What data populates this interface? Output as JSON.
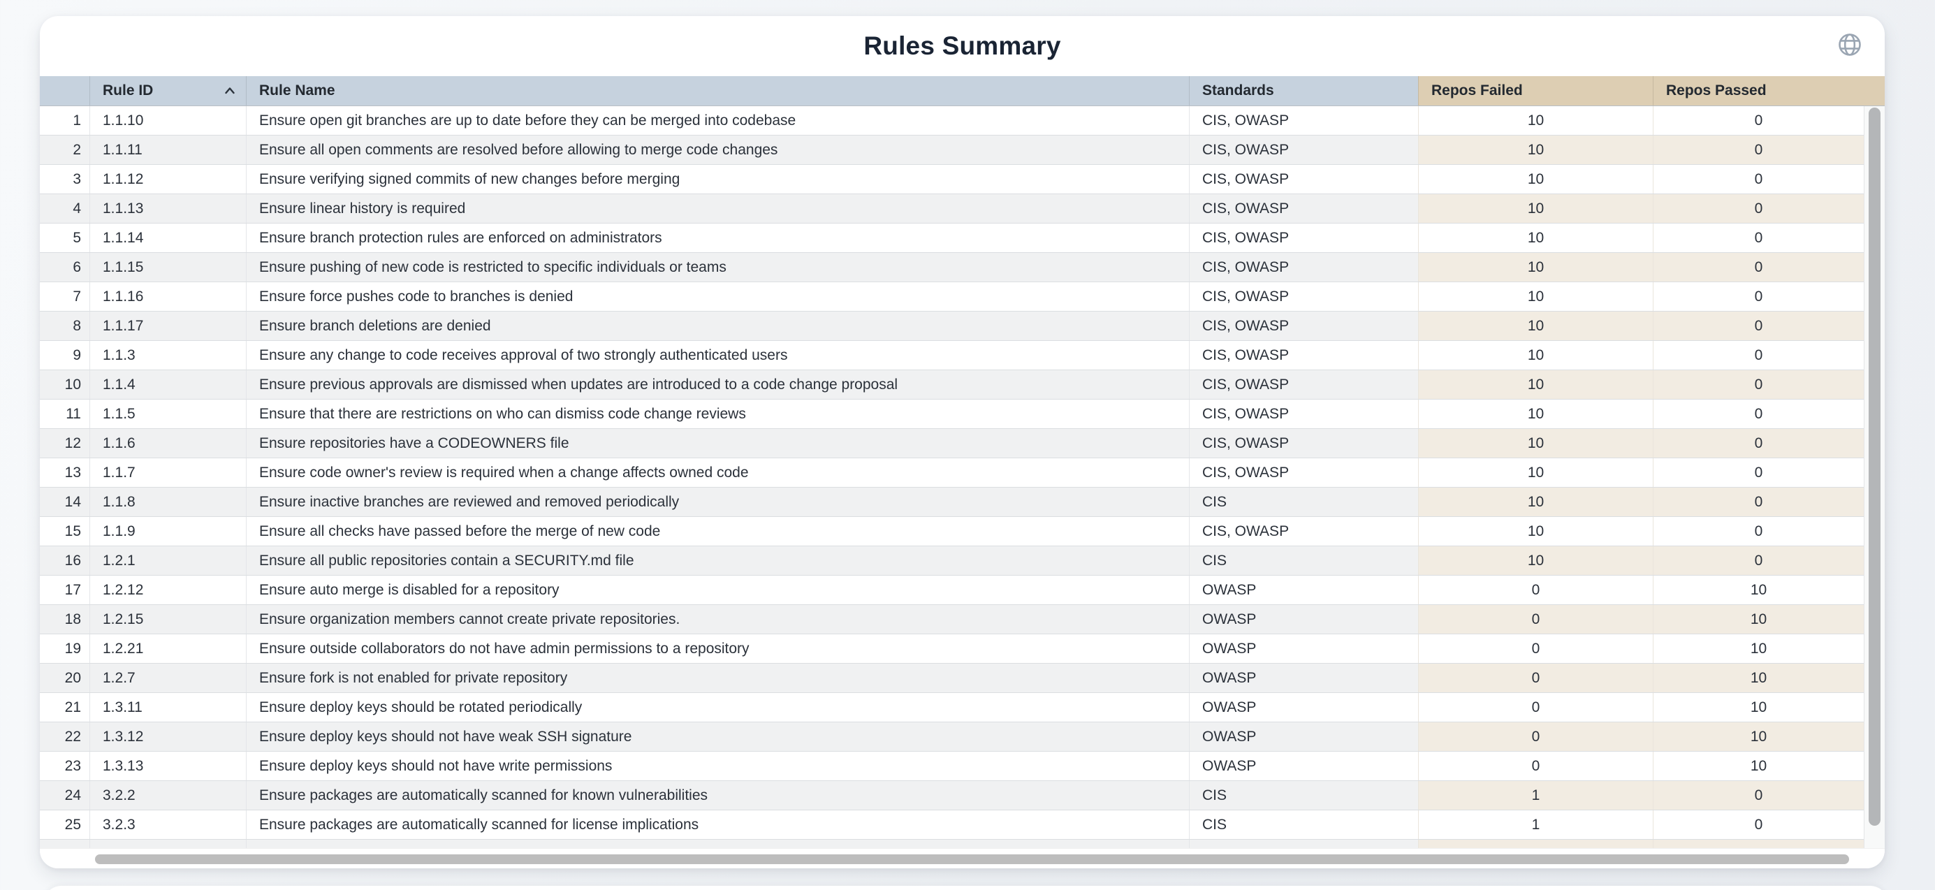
{
  "page": {
    "title": "Rules Summary"
  },
  "icons": {
    "globe": "globe-icon",
    "sort_ascending": "chevron-up-icon"
  },
  "colors": {
    "header_blue": "#c6d2de",
    "header_tan": "#ddceb3",
    "row_shaded": "#f0f1f2",
    "row_shaded_tan": "#f2ece2",
    "title_text": "#1a2434",
    "scrollbar_thumb": "#bdbdbd"
  },
  "table": {
    "columns": [
      {
        "key": "index",
        "label": ""
      },
      {
        "key": "rule_id",
        "label": "Rule ID",
        "sort": "asc"
      },
      {
        "key": "rule_name",
        "label": "Rule Name"
      },
      {
        "key": "standards",
        "label": "Standards"
      },
      {
        "key": "repos_failed",
        "label": "Repos Failed"
      },
      {
        "key": "repos_passed",
        "label": "Repos Passed"
      }
    ],
    "rows": [
      {
        "index": 1,
        "rule_id": "1.1.10",
        "rule_name": "Ensure open git branches are up to date before they can be merged into codebase",
        "standards": "CIS, OWASP",
        "repos_failed": 10,
        "repos_passed": 0
      },
      {
        "index": 2,
        "rule_id": "1.1.11",
        "rule_name": "Ensure all open comments are resolved before allowing to merge code changes",
        "standards": "CIS, OWASP",
        "repos_failed": 10,
        "repos_passed": 0
      },
      {
        "index": 3,
        "rule_id": "1.1.12",
        "rule_name": "Ensure verifying signed commits of new changes before merging",
        "standards": "CIS, OWASP",
        "repos_failed": 10,
        "repos_passed": 0
      },
      {
        "index": 4,
        "rule_id": "1.1.13",
        "rule_name": "Ensure linear history is required",
        "standards": "CIS, OWASP",
        "repos_failed": 10,
        "repos_passed": 0
      },
      {
        "index": 5,
        "rule_id": "1.1.14",
        "rule_name": "Ensure branch protection rules are enforced on administrators",
        "standards": "CIS, OWASP",
        "repos_failed": 10,
        "repos_passed": 0
      },
      {
        "index": 6,
        "rule_id": "1.1.15",
        "rule_name": "Ensure pushing of new code is restricted to specific individuals or teams",
        "standards": "CIS, OWASP",
        "repos_failed": 10,
        "repos_passed": 0
      },
      {
        "index": 7,
        "rule_id": "1.1.16",
        "rule_name": "Ensure force pushes code to branches is denied",
        "standards": "CIS, OWASP",
        "repos_failed": 10,
        "repos_passed": 0
      },
      {
        "index": 8,
        "rule_id": "1.1.17",
        "rule_name": "Ensure branch deletions are denied",
        "standards": "CIS, OWASP",
        "repos_failed": 10,
        "repos_passed": 0
      },
      {
        "index": 9,
        "rule_id": "1.1.3",
        "rule_name": "Ensure any change to code receives approval of two strongly authenticated users",
        "standards": "CIS, OWASP",
        "repos_failed": 10,
        "repos_passed": 0
      },
      {
        "index": 10,
        "rule_id": "1.1.4",
        "rule_name": "Ensure previous approvals are dismissed when updates are introduced to a code change proposal",
        "standards": "CIS, OWASP",
        "repos_failed": 10,
        "repos_passed": 0
      },
      {
        "index": 11,
        "rule_id": "1.1.5",
        "rule_name": "Ensure that there are restrictions on who can dismiss code change reviews",
        "standards": "CIS, OWASP",
        "repos_failed": 10,
        "repos_passed": 0
      },
      {
        "index": 12,
        "rule_id": "1.1.6",
        "rule_name": "Ensure repositories have a CODEOWNERS file",
        "standards": "CIS, OWASP",
        "repos_failed": 10,
        "repos_passed": 0
      },
      {
        "index": 13,
        "rule_id": "1.1.7",
        "rule_name": "Ensure code owner's review is required when a change affects owned code",
        "standards": "CIS, OWASP",
        "repos_failed": 10,
        "repos_passed": 0
      },
      {
        "index": 14,
        "rule_id": "1.1.8",
        "rule_name": "Ensure inactive branches are reviewed and removed periodically",
        "standards": "CIS",
        "repos_failed": 10,
        "repos_passed": 0
      },
      {
        "index": 15,
        "rule_id": "1.1.9",
        "rule_name": "Ensure all checks have passed before the merge of new code",
        "standards": "CIS, OWASP",
        "repos_failed": 10,
        "repos_passed": 0
      },
      {
        "index": 16,
        "rule_id": "1.2.1",
        "rule_name": "Ensure all public repositories contain a SECURITY.md file",
        "standards": "CIS",
        "repos_failed": 10,
        "repos_passed": 0
      },
      {
        "index": 17,
        "rule_id": "1.2.12",
        "rule_name": "Ensure auto merge is disabled for a repository",
        "standards": "OWASP",
        "repos_failed": 0,
        "repos_passed": 10
      },
      {
        "index": 18,
        "rule_id": "1.2.15",
        "rule_name": "Ensure organization members cannot create private repositories.",
        "standards": "OWASP",
        "repos_failed": 0,
        "repos_passed": 10
      },
      {
        "index": 19,
        "rule_id": "1.2.21",
        "rule_name": "Ensure outside collaborators do not have admin permissions to a repository",
        "standards": "OWASP",
        "repos_failed": 0,
        "repos_passed": 10
      },
      {
        "index": 20,
        "rule_id": "1.2.7",
        "rule_name": "Ensure fork is not enabled for private repository",
        "standards": "OWASP",
        "repos_failed": 0,
        "repos_passed": 10
      },
      {
        "index": 21,
        "rule_id": "1.3.11",
        "rule_name": "Ensure deploy keys should be rotated periodically",
        "standards": "OWASP",
        "repos_failed": 0,
        "repos_passed": 10
      },
      {
        "index": 22,
        "rule_id": "1.3.12",
        "rule_name": "Ensure deploy keys should not have weak SSH signature",
        "standards": "OWASP",
        "repos_failed": 0,
        "repos_passed": 10
      },
      {
        "index": 23,
        "rule_id": "1.3.13",
        "rule_name": "Ensure deploy keys should not have write permissions",
        "standards": "OWASP",
        "repos_failed": 0,
        "repos_passed": 10
      },
      {
        "index": 24,
        "rule_id": "3.2.2",
        "rule_name": "Ensure packages are automatically scanned for known vulnerabilities",
        "standards": "CIS",
        "repos_failed": 1,
        "repos_passed": 0
      },
      {
        "index": 25,
        "rule_id": "3.2.3",
        "rule_name": "Ensure packages are automatically scanned for license implications",
        "standards": "CIS",
        "repos_failed": 1,
        "repos_passed": 0
      }
    ]
  }
}
